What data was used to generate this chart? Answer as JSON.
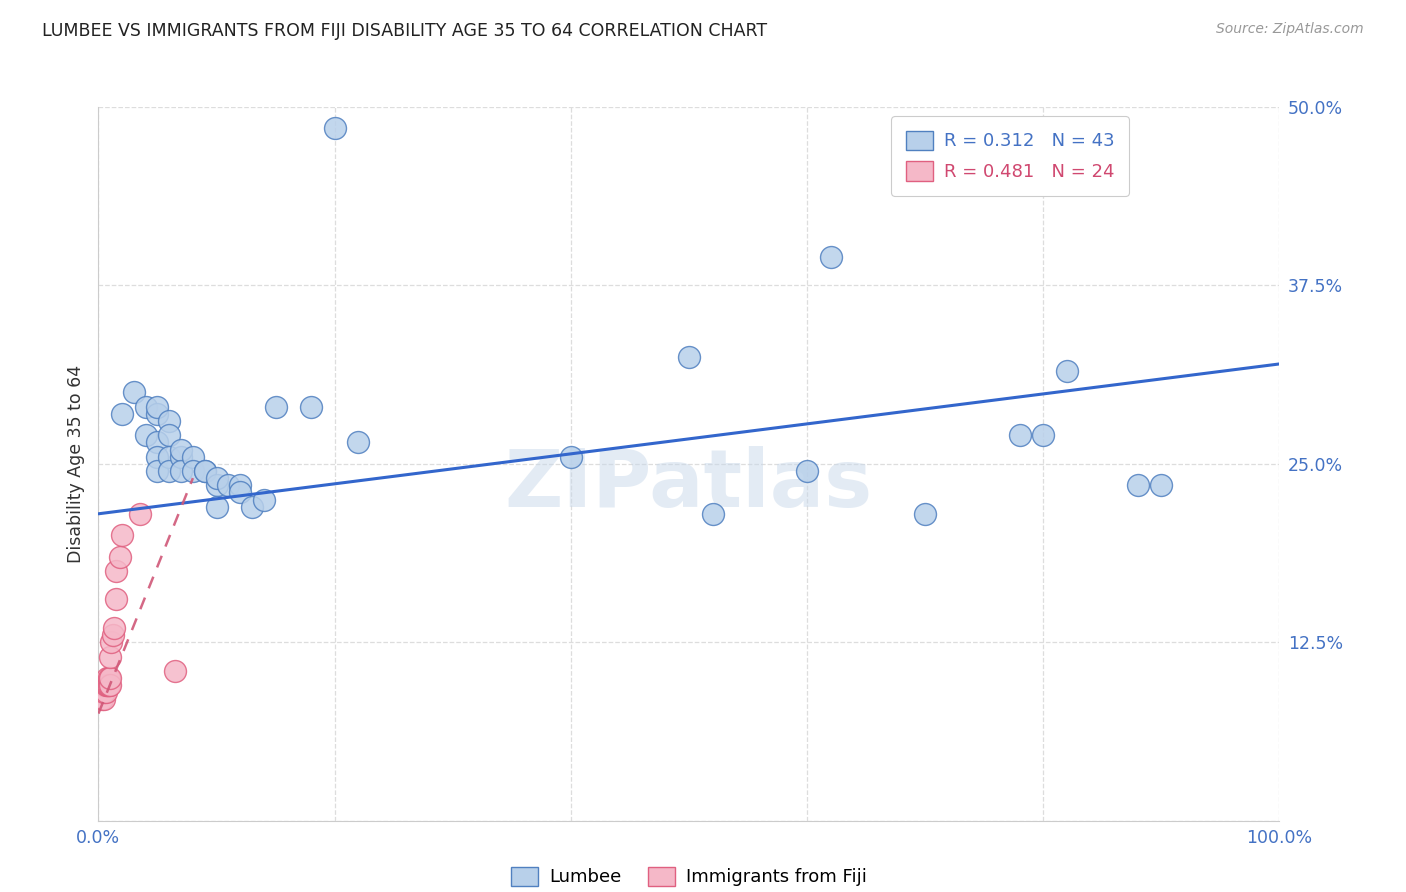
{
  "title": "LUMBEE VS IMMIGRANTS FROM FIJI DISABILITY AGE 35 TO 64 CORRELATION CHART",
  "source": "Source: ZipAtlas.com",
  "ylabel": "Disability Age 35 to 64",
  "xlim": [
    0,
    1.0
  ],
  "ylim": [
    0,
    0.5
  ],
  "yticks": [
    0.0,
    0.125,
    0.25,
    0.375,
    0.5
  ],
  "ytick_labels": [
    "",
    "12.5%",
    "25.0%",
    "37.5%",
    "50.0%"
  ],
  "xtick_vals": [
    0.0,
    0.2,
    0.4,
    0.6,
    0.8,
    1.0
  ],
  "xtick_labels": [
    "0.0%",
    "",
    "",
    "",
    "",
    "100.0%"
  ],
  "legend_lumbee": "R = 0.312   N = 43",
  "legend_fiji": "R = 0.481   N = 24",
  "lumbee_fill": "#b8d0ea",
  "fiji_fill": "#f5b8c8",
  "lumbee_edge": "#5080c0",
  "fiji_edge": "#e06080",
  "lumbee_line": "#3366cc",
  "fiji_line": "#d05878",
  "lumbee_scatter_x": [
    0.02,
    0.03,
    0.04,
    0.04,
    0.05,
    0.05,
    0.05,
    0.05,
    0.05,
    0.06,
    0.06,
    0.06,
    0.06,
    0.07,
    0.07,
    0.07,
    0.08,
    0.08,
    0.09,
    0.09,
    0.1,
    0.1,
    0.1,
    0.11,
    0.12,
    0.12,
    0.13,
    0.14,
    0.15,
    0.18,
    0.2,
    0.22,
    0.4,
    0.5,
    0.52,
    0.6,
    0.62,
    0.7,
    0.78,
    0.8,
    0.82,
    0.88,
    0.9
  ],
  "lumbee_scatter_y": [
    0.285,
    0.3,
    0.29,
    0.27,
    0.285,
    0.29,
    0.265,
    0.255,
    0.245,
    0.28,
    0.27,
    0.255,
    0.245,
    0.255,
    0.26,
    0.245,
    0.255,
    0.245,
    0.245,
    0.245,
    0.235,
    0.22,
    0.24,
    0.235,
    0.235,
    0.23,
    0.22,
    0.225,
    0.29,
    0.29,
    0.485,
    0.265,
    0.255,
    0.325,
    0.215,
    0.245,
    0.395,
    0.215,
    0.27,
    0.27,
    0.315,
    0.235,
    0.235
  ],
  "fiji_scatter_x": [
    0.003,
    0.004,
    0.005,
    0.005,
    0.005,
    0.006,
    0.006,
    0.007,
    0.007,
    0.008,
    0.009,
    0.009,
    0.01,
    0.01,
    0.01,
    0.011,
    0.012,
    0.013,
    0.015,
    0.015,
    0.018,
    0.02,
    0.035,
    0.065
  ],
  "fiji_scatter_y": [
    0.085,
    0.09,
    0.085,
    0.09,
    0.095,
    0.09,
    0.095,
    0.095,
    0.1,
    0.095,
    0.095,
    0.1,
    0.095,
    0.1,
    0.115,
    0.125,
    0.13,
    0.135,
    0.155,
    0.175,
    0.185,
    0.2,
    0.215,
    0.105
  ],
  "watermark": "ZIPatlas",
  "lumbee_line_x0": 0.0,
  "lumbee_line_x1": 1.0,
  "lumbee_line_y0": 0.215,
  "lumbee_line_y1": 0.32,
  "fiji_line_x0": 0.0,
  "fiji_line_x1": 0.08,
  "fiji_line_y0": 0.075,
  "fiji_line_y1": 0.24
}
